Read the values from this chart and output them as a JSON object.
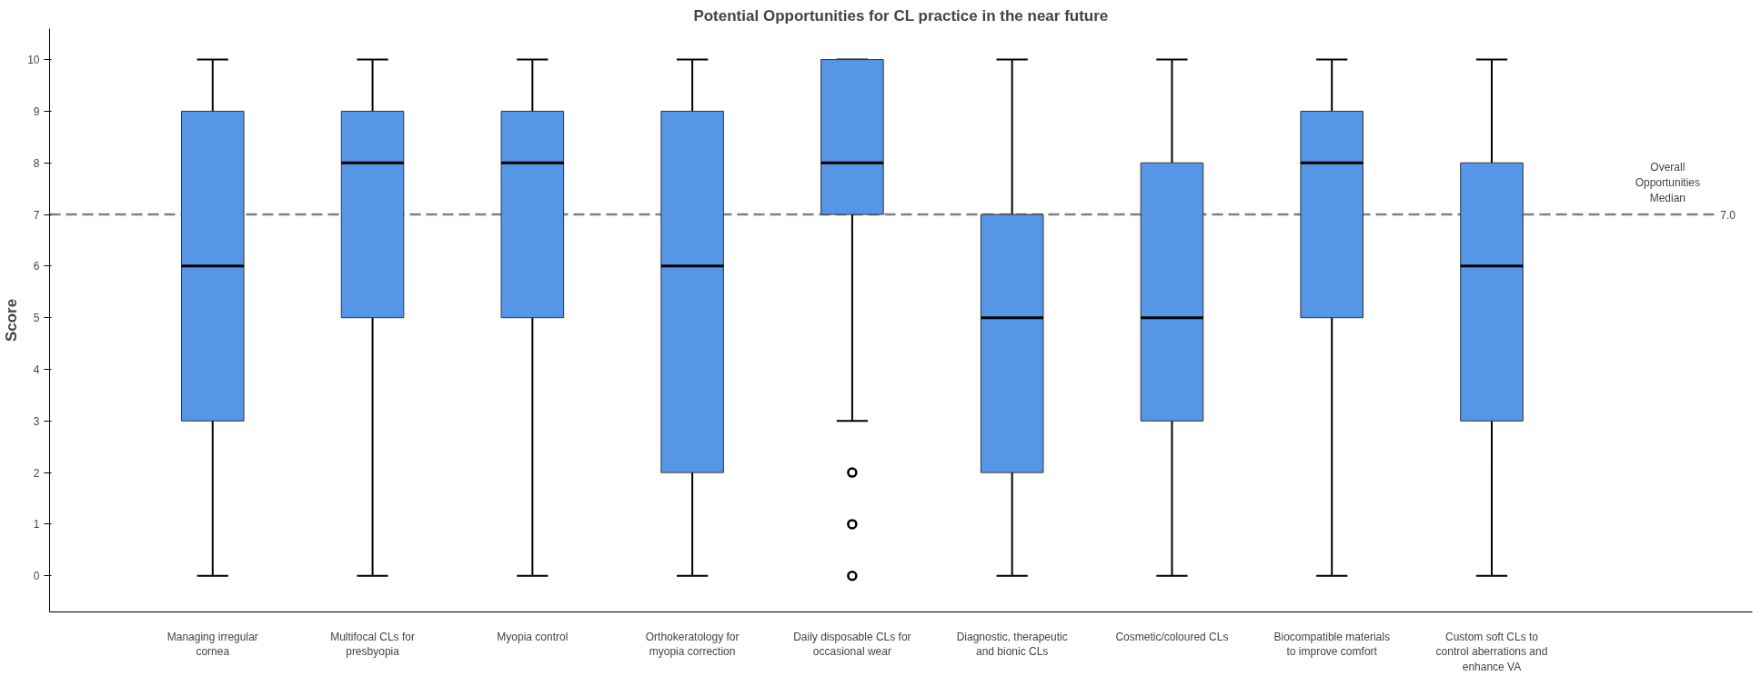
{
  "chart_data": {
    "type": "box",
    "title": "Potential Opportunities for CL practice in the near future",
    "ylabel": "Score",
    "categories": [
      "Managing irregular cornea",
      "Multifocal CLs for presbyopia",
      "Myopia control",
      "Orthokeratology for myopia correction",
      "Daily disposable CLs for occasional wear",
      "Diagnostic, therapeutic and bionic CLs",
      "Cosmetic/coloured CLs",
      "Biocompatible materials to improve comfort",
      "Custom soft CLs to control aberrations and enhance VA"
    ],
    "series": [
      {
        "color": "#5596e6",
        "boxes": [
          {
            "low": 0,
            "q1": 3,
            "median": 6,
            "q3": 9,
            "high": 10
          },
          {
            "low": 0,
            "q1": 5,
            "median": 8,
            "q3": 9,
            "high": 10
          },
          {
            "low": 0,
            "q1": 5,
            "median": 8,
            "q3": 9,
            "high": 10
          },
          {
            "low": 0,
            "q1": 2,
            "median": 6,
            "q3": 9,
            "high": 10
          },
          {
            "low": 3,
            "q1": 7,
            "median": 8,
            "q3": 10,
            "high": 10,
            "outliers": [
              0,
              1,
              2
            ]
          },
          {
            "low": 0,
            "q1": 2,
            "median": 5,
            "q3": 7,
            "high": 10
          },
          {
            "low": 0,
            "q1": 3,
            "median": 5,
            "q3": 8,
            "high": 10
          },
          {
            "low": 0,
            "q1": 5,
            "median": 8,
            "q3": 9,
            "high": 10
          },
          {
            "low": 0,
            "q1": 3,
            "median": 6,
            "q3": 8,
            "high": 10
          }
        ]
      }
    ],
    "ylim": [
      -0.7,
      10.6
    ],
    "yticks": [
      0,
      1,
      2,
      3,
      4,
      5,
      6,
      7,
      8,
      9,
      10
    ],
    "grid": false,
    "ref_lines": [
      {
        "axis": "y",
        "value": 7,
        "label": "Overall Opportunities Median",
        "color": "#808080",
        "line_style": "dashed"
      }
    ],
    "annotations": [
      "7.0"
    ]
  }
}
